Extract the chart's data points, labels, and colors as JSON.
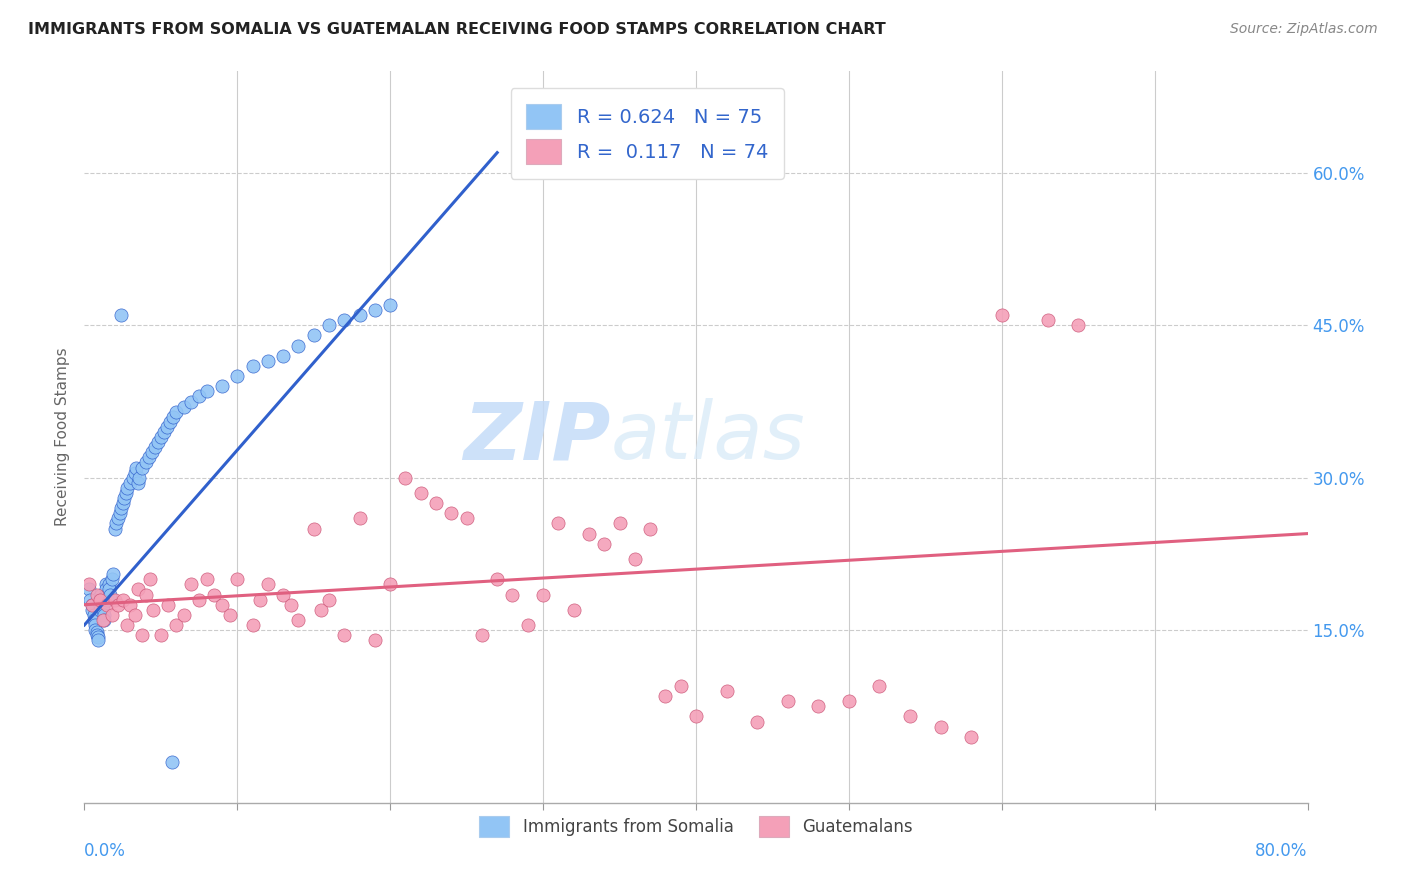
{
  "title": "IMMIGRANTS FROM SOMALIA VS GUATEMALAN RECEIVING FOOD STAMPS CORRELATION CHART",
  "source": "Source: ZipAtlas.com",
  "ylabel": "Receiving Food Stamps",
  "ytick_values": [
    0.15,
    0.3,
    0.45,
    0.6
  ],
  "xlim": [
    0.0,
    0.8
  ],
  "ylim": [
    -0.02,
    0.7
  ],
  "color_somalia": "#92C5F5",
  "color_guatemalans": "#F4A0B8",
  "trendline_somalia_color": "#3060CC",
  "trendline_guatemalans_color": "#E06080",
  "watermark_zip": "ZIP",
  "watermark_atlas": "atlas",
  "somalia_x": [
    0.003,
    0.004,
    0.005,
    0.005,
    0.006,
    0.006,
    0.007,
    0.007,
    0.008,
    0.008,
    0.009,
    0.009,
    0.01,
    0.01,
    0.01,
    0.011,
    0.011,
    0.012,
    0.012,
    0.013,
    0.013,
    0.014,
    0.014,
    0.015,
    0.015,
    0.016,
    0.016,
    0.017,
    0.018,
    0.019,
    0.02,
    0.021,
    0.022,
    0.023,
    0.024,
    0.025,
    0.026,
    0.027,
    0.028,
    0.03,
    0.032,
    0.033,
    0.034,
    0.035,
    0.036,
    0.038,
    0.04,
    0.042,
    0.044,
    0.046,
    0.048,
    0.05,
    0.052,
    0.054,
    0.056,
    0.058,
    0.06,
    0.065,
    0.07,
    0.075,
    0.08,
    0.09,
    0.1,
    0.11,
    0.12,
    0.13,
    0.14,
    0.15,
    0.16,
    0.17,
    0.18,
    0.19,
    0.2,
    0.057,
    0.024
  ],
  "somalia_y": [
    0.19,
    0.18,
    0.175,
    0.17,
    0.165,
    0.16,
    0.155,
    0.15,
    0.148,
    0.145,
    0.143,
    0.14,
    0.18,
    0.175,
    0.17,
    0.185,
    0.18,
    0.175,
    0.17,
    0.165,
    0.16,
    0.195,
    0.19,
    0.185,
    0.18,
    0.195,
    0.19,
    0.185,
    0.2,
    0.205,
    0.25,
    0.255,
    0.26,
    0.265,
    0.27,
    0.275,
    0.28,
    0.285,
    0.29,
    0.295,
    0.3,
    0.305,
    0.31,
    0.295,
    0.3,
    0.31,
    0.315,
    0.32,
    0.325,
    0.33,
    0.335,
    0.34,
    0.345,
    0.35,
    0.355,
    0.36,
    0.365,
    0.37,
    0.375,
    0.38,
    0.385,
    0.39,
    0.4,
    0.41,
    0.415,
    0.42,
    0.43,
    0.44,
    0.45,
    0.455,
    0.46,
    0.465,
    0.47,
    0.02,
    0.46
  ],
  "guatemalans_x": [
    0.003,
    0.005,
    0.008,
    0.01,
    0.012,
    0.015,
    0.018,
    0.02,
    0.022,
    0.025,
    0.028,
    0.03,
    0.033,
    0.035,
    0.038,
    0.04,
    0.043,
    0.045,
    0.05,
    0.055,
    0.06,
    0.065,
    0.07,
    0.075,
    0.08,
    0.085,
    0.09,
    0.095,
    0.1,
    0.11,
    0.115,
    0.12,
    0.13,
    0.135,
    0.14,
    0.15,
    0.155,
    0.16,
    0.17,
    0.18,
    0.19,
    0.2,
    0.21,
    0.22,
    0.23,
    0.24,
    0.25,
    0.26,
    0.27,
    0.28,
    0.29,
    0.3,
    0.31,
    0.32,
    0.33,
    0.34,
    0.35,
    0.36,
    0.37,
    0.38,
    0.39,
    0.4,
    0.42,
    0.44,
    0.46,
    0.48,
    0.5,
    0.52,
    0.54,
    0.56,
    0.58,
    0.6,
    0.63,
    0.65
  ],
  "guatemalans_y": [
    0.195,
    0.175,
    0.185,
    0.18,
    0.16,
    0.175,
    0.165,
    0.18,
    0.175,
    0.18,
    0.155,
    0.175,
    0.165,
    0.19,
    0.145,
    0.185,
    0.2,
    0.17,
    0.145,
    0.175,
    0.155,
    0.165,
    0.195,
    0.18,
    0.2,
    0.185,
    0.175,
    0.165,
    0.2,
    0.155,
    0.18,
    0.195,
    0.185,
    0.175,
    0.16,
    0.25,
    0.17,
    0.18,
    0.145,
    0.26,
    0.14,
    0.195,
    0.3,
    0.285,
    0.275,
    0.265,
    0.26,
    0.145,
    0.2,
    0.185,
    0.155,
    0.185,
    0.255,
    0.17,
    0.245,
    0.235,
    0.255,
    0.22,
    0.25,
    0.085,
    0.095,
    0.065,
    0.09,
    0.06,
    0.08,
    0.075,
    0.08,
    0.095,
    0.065,
    0.055,
    0.045,
    0.46,
    0.455,
    0.45
  ]
}
